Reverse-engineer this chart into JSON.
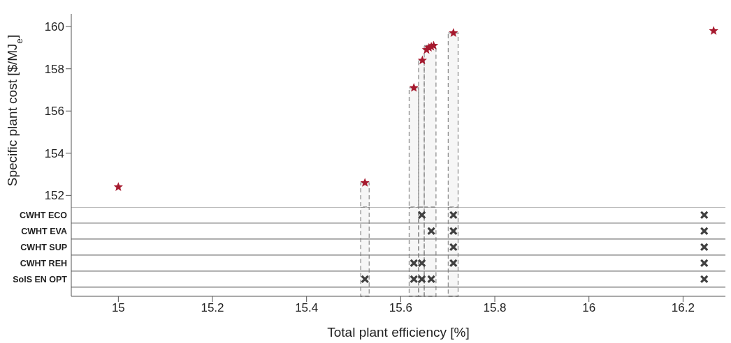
{
  "chart_data": [
    {
      "type": "scatter",
      "ylabel": "Specific plant cost [$/MJ$_{e}$]",
      "xlim": [
        14.9,
        16.29
      ],
      "ylim": [
        151.45,
        160.6
      ],
      "yticks": [
        152,
        154,
        156,
        158,
        160
      ],
      "tick_labels": "y",
      "marker": "star",
      "series": [
        {
          "color": "#a6192e",
          "x": [
            15.0,
            15.524,
            15.628,
            15.646,
            15.655,
            15.66,
            15.665,
            15.67,
            15.712,
            16.265
          ],
          "values": [
            152.4,
            152.6,
            157.1,
            158.4,
            158.9,
            159.0,
            159.05,
            159.1,
            159.7,
            159.8
          ]
        }
      ],
      "bands": [
        {
          "axis": "x",
          "from": 15.515,
          "to": 15.533,
          "color": "#909090"
        },
        {
          "axis": "x",
          "from": 15.618,
          "to": 15.638,
          "color": "#909090"
        },
        {
          "axis": "x",
          "from": 15.638,
          "to": 15.65,
          "color": "#909090"
        },
        {
          "axis": "x",
          "from": 15.65,
          "to": 15.675,
          "color": "#909090"
        },
        {
          "axis": "x",
          "from": 15.701,
          "to": 15.722,
          "color": "#909090"
        }
      ]
    },
    {
      "type": "scatter",
      "orientation": "horizontal",
      "xlabel": "Total plant efficiency [%]",
      "xlim": [
        14.9,
        16.29
      ],
      "xticks": [
        15,
        15.2,
        15.4,
        15.6,
        15.8,
        16,
        16.2
      ],
      "categories": [
        "CWHT ECO",
        "CWHT EVA",
        "CWHT SUP",
        "CWHT REH",
        "SolS EN OPT"
      ],
      "marker": "cross",
      "series": [
        {
          "color": "#404040",
          "values": [
            null,
            null,
            null,
            null,
            15.524
          ]
        },
        {
          "color": "#404040",
          "values": [
            null,
            null,
            null,
            15.628,
            15.628
          ]
        },
        {
          "color": "#404040",
          "values": [
            15.645,
            null,
            null,
            15.645,
            15.645
          ]
        },
        {
          "color": "#404040",
          "values": [
            null,
            15.665,
            null,
            null,
            15.665
          ]
        },
        {
          "color": "#404040",
          "values": [
            15.712,
            15.712,
            15.712,
            15.712,
            null
          ]
        },
        {
          "color": "#404040",
          "values": [
            16.245,
            16.245,
            16.245,
            16.245,
            16.245
          ]
        }
      ],
      "bands": [
        {
          "axis": "x",
          "from": 15.515,
          "to": 15.533,
          "color": "#909090"
        },
        {
          "axis": "x",
          "from": 15.618,
          "to": 15.638,
          "color": "#909090"
        },
        {
          "axis": "x",
          "from": 15.638,
          "to": 15.65,
          "color": "#909090"
        },
        {
          "axis": "x",
          "from": 15.65,
          "to": 15.675,
          "color": "#909090"
        },
        {
          "axis": "x",
          "from": 15.701,
          "to": 15.722,
          "color": "#909090"
        }
      ]
    }
  ]
}
